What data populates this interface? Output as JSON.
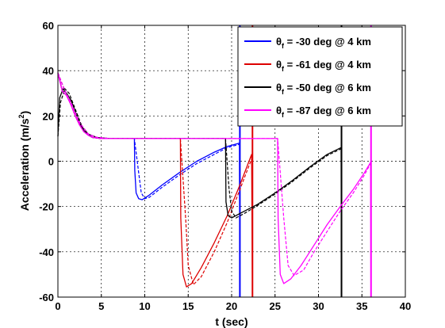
{
  "chart_data": {
    "type": "line",
    "xlabel": "t (sec)",
    "ylabel_main": "Acceleration (m/s",
    "ylabel_sup": "2",
    "ylabel_end": ")",
    "xlim": [
      0,
      40
    ],
    "ylim": [
      -60,
      60
    ],
    "xticks": [
      0,
      5,
      10,
      15,
      20,
      25,
      30,
      35,
      40
    ],
    "yticks": [
      -60,
      -40,
      -20,
      0,
      20,
      40,
      60
    ],
    "grid": true,
    "legend_position": "top-right",
    "series": [
      {
        "name_prefix": "θ",
        "name_sub": "f",
        "name_rest": " = -30 deg @ 4 km",
        "color": "#0000ff",
        "solid": [
          [
            0,
            39
          ],
          [
            0.5,
            31
          ],
          [
            1,
            29
          ],
          [
            1.5,
            25
          ],
          [
            2,
            20
          ],
          [
            2.5,
            16
          ],
          [
            3,
            13
          ],
          [
            3.5,
            11.5
          ],
          [
            4,
            10.5
          ],
          [
            5,
            10
          ],
          [
            8.8,
            10
          ],
          [
            8.85,
            -4
          ],
          [
            9,
            -14
          ],
          [
            9.3,
            -16.5
          ],
          [
            9.7,
            -17
          ],
          [
            10.5,
            -15
          ],
          [
            12,
            -10.5
          ],
          [
            14,
            -5
          ],
          [
            16,
            0
          ],
          [
            18,
            4
          ],
          [
            19.5,
            6.5
          ],
          [
            20.9,
            8
          ],
          [
            20.95,
            -60
          ]
        ],
        "dashed": [
          [
            0,
            39
          ],
          [
            0.7,
            32
          ],
          [
            1.5,
            26
          ],
          [
            2.5,
            17
          ],
          [
            3.5,
            12
          ],
          [
            4.5,
            10.5
          ],
          [
            6,
            10
          ],
          [
            8.8,
            10
          ],
          [
            9.3,
            -5
          ],
          [
            9.6,
            -14
          ],
          [
            10,
            -16.5
          ],
          [
            10.5,
            -16
          ],
          [
            12,
            -11.5
          ],
          [
            14,
            -6
          ],
          [
            16,
            -1
          ],
          [
            18,
            3
          ],
          [
            19.5,
            6
          ],
          [
            20.9,
            7.5
          ]
        ],
        "vline": 20.95
      },
      {
        "name_prefix": "θ",
        "name_sub": "f",
        "name_rest": " = -61 deg @ 4 km",
        "color": "#dd0000",
        "solid": [
          [
            0,
            39
          ],
          [
            0.5,
            31
          ],
          [
            1,
            29
          ],
          [
            1.5,
            25
          ],
          [
            2,
            20
          ],
          [
            2.5,
            16
          ],
          [
            3,
            13
          ],
          [
            3.5,
            11.5
          ],
          [
            4,
            10.5
          ],
          [
            5,
            10
          ],
          [
            14.1,
            10
          ],
          [
            14.15,
            -25
          ],
          [
            14.4,
            -50
          ],
          [
            14.8,
            -55.5
          ],
          [
            15.4,
            -54
          ],
          [
            16.5,
            -47
          ],
          [
            18,
            -36
          ],
          [
            19.5,
            -24
          ],
          [
            21,
            -10
          ],
          [
            22.3,
            3
          ],
          [
            22.4,
            -60
          ]
        ],
        "dashed": [
          [
            0,
            39
          ],
          [
            0.7,
            32
          ],
          [
            1.5,
            26
          ],
          [
            2.5,
            17
          ],
          [
            3.5,
            12
          ],
          [
            4.5,
            10.5
          ],
          [
            6,
            10
          ],
          [
            14.1,
            10
          ],
          [
            14.7,
            -25
          ],
          [
            15,
            -46
          ],
          [
            15.6,
            -54.5
          ],
          [
            16.5,
            -51
          ],
          [
            18,
            -40
          ],
          [
            19.5,
            -27
          ],
          [
            21,
            -12
          ],
          [
            22.3,
            1
          ]
        ],
        "vline": 22.4
      },
      {
        "name_prefix": "θ",
        "name_sub": "f",
        "name_rest": " = -50 deg @ 6 km",
        "color": "#000000",
        "solid": [
          [
            0,
            11
          ],
          [
            0.2,
            28
          ],
          [
            0.6,
            32
          ],
          [
            1,
            30
          ],
          [
            1.5,
            27
          ],
          [
            2,
            22
          ],
          [
            2.5,
            17
          ],
          [
            3,
            13.5
          ],
          [
            3.5,
            11.5
          ],
          [
            4,
            10.5
          ],
          [
            5,
            10
          ],
          [
            19.3,
            10
          ],
          [
            19.35,
            -18
          ],
          [
            19.6,
            -24
          ],
          [
            20,
            -25
          ],
          [
            21,
            -23
          ],
          [
            23,
            -19
          ],
          [
            25,
            -14
          ],
          [
            27,
            -8.5
          ],
          [
            29,
            -2.5
          ],
          [
            31,
            3
          ],
          [
            32.6,
            6
          ],
          [
            32.65,
            -60
          ]
        ],
        "dashed": [
          [
            0,
            11
          ],
          [
            0.3,
            26
          ],
          [
            0.8,
            32
          ],
          [
            1.3,
            30
          ],
          [
            2,
            23
          ],
          [
            2.8,
            15
          ],
          [
            3.5,
            12
          ],
          [
            4.5,
            10.5
          ],
          [
            6,
            10
          ],
          [
            19.3,
            10
          ],
          [
            19.7,
            -12
          ],
          [
            20,
            -22
          ],
          [
            20.5,
            -25
          ],
          [
            21.5,
            -23
          ],
          [
            23,
            -19.5
          ],
          [
            25,
            -14.5
          ],
          [
            27,
            -9
          ],
          [
            29,
            -3
          ],
          [
            31,
            2.5
          ],
          [
            32.6,
            5.5
          ]
        ],
        "vline": 32.65
      },
      {
        "name_prefix": "θ",
        "name_sub": "f",
        "name_rest": " = -87 deg @ 6 km",
        "color": "#ff00ff",
        "solid": [
          [
            0,
            39
          ],
          [
            0.5,
            31
          ],
          [
            1,
            29
          ],
          [
            1.5,
            25
          ],
          [
            2,
            20
          ],
          [
            2.5,
            16
          ],
          [
            3,
            13
          ],
          [
            3.5,
            11.5
          ],
          [
            4,
            10.5
          ],
          [
            5,
            10
          ],
          [
            25.3,
            10
          ],
          [
            25.35,
            -25
          ],
          [
            25.6,
            -50
          ],
          [
            26,
            -54
          ],
          [
            26.8,
            -52
          ],
          [
            28,
            -46
          ],
          [
            29.5,
            -37
          ],
          [
            31,
            -28
          ],
          [
            32.5,
            -20
          ],
          [
            34,
            -12.5
          ],
          [
            35.3,
            -5
          ],
          [
            36,
            -0.5
          ],
          [
            36.05,
            -60
          ]
        ],
        "dashed": [
          [
            0,
            39
          ],
          [
            0.7,
            32
          ],
          [
            1.5,
            26
          ],
          [
            2.5,
            17
          ],
          [
            3.5,
            12
          ],
          [
            4.5,
            10.5
          ],
          [
            6,
            10
          ],
          [
            25.3,
            10
          ],
          [
            26,
            -25
          ],
          [
            26.5,
            -46
          ],
          [
            27.2,
            -50.5
          ],
          [
            28.3,
            -48
          ],
          [
            29.5,
            -40
          ],
          [
            31,
            -31
          ],
          [
            32.5,
            -22
          ],
          [
            34,
            -14
          ],
          [
            35.3,
            -6
          ],
          [
            36,
            -1
          ]
        ],
        "vline": 36.05
      }
    ]
  }
}
